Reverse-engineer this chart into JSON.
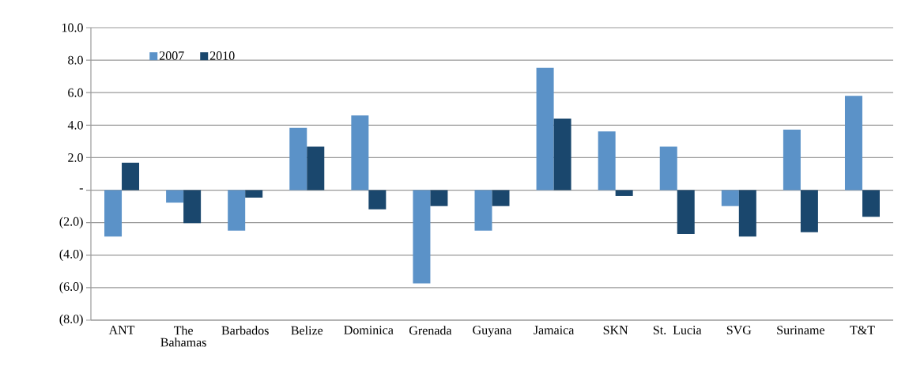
{
  "chart_data": {
    "type": "bar",
    "categories": [
      "ANT",
      "The Bahamas",
      "Barbados",
      "Belize",
      "Dominica",
      "Grenada",
      "Guyana",
      "Jamaica",
      "SKN",
      "St. Lucia",
      "SVG",
      "Suriname",
      "T&T"
    ],
    "series": [
      {
        "name": "2007",
        "color": "#5b92c8",
        "values": [
          -2.85,
          -0.77,
          -2.49,
          3.83,
          4.6,
          -5.74,
          -2.49,
          7.53,
          3.62,
          2.68,
          -0.98,
          3.72,
          5.81
        ]
      },
      {
        "name": "2010",
        "color": "#1a476d",
        "values": [
          1.69,
          -2.03,
          -0.46,
          2.68,
          -1.18,
          -0.98,
          -0.98,
          4.4,
          -0.36,
          -2.7,
          -2.85,
          -2.59,
          -1.64
        ]
      }
    ],
    "ylim": [
      -8,
      10
    ],
    "yticks": [
      {
        "value": -8,
        "label": "(8.0)"
      },
      {
        "value": -6,
        "label": "(6.0)"
      },
      {
        "value": -4,
        "label": "(4.0)"
      },
      {
        "value": -2,
        "label": "(2.0)"
      },
      {
        "value": 0,
        "label": "-"
      },
      {
        "value": 2,
        "label": "2.0"
      },
      {
        "value": 4,
        "label": "4.0"
      },
      {
        "value": 6,
        "label": "6.0"
      },
      {
        "value": 8,
        "label": "8.0"
      },
      {
        "value": 10,
        "label": "10.0"
      }
    ],
    "grid": "y",
    "legend": "top left"
  }
}
